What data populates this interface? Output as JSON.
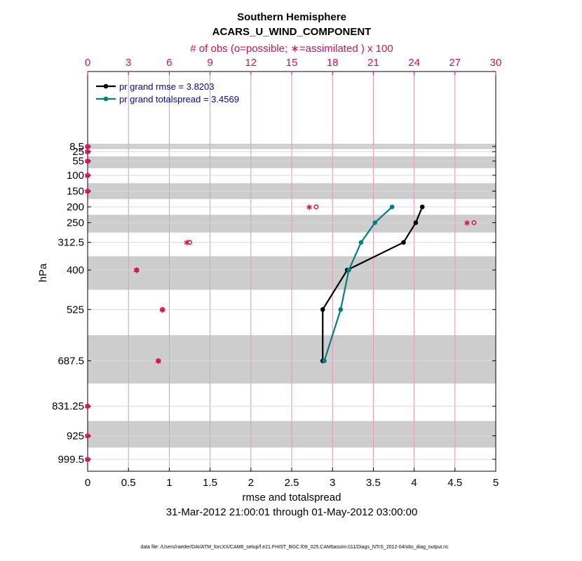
{
  "chart_data": {
    "type": "line",
    "title": "Southern Hemisphere",
    "subtitle": "ACARS_U_WIND_COMPONENT",
    "top_axis_label": "# of obs (o=possible; ∗=assimilated ) x 100",
    "xlabel": "rmse and totalspread",
    "ylabel": "hPa",
    "date_range": "31-Mar-2012 21:00:01 through 01-May-2012 03:00:00",
    "footnote": "data file: /Users/raeder/DAI/ATM_forcXX/CAM6_setup/f.e21.FHIST_BGC.f09_025.CAM6assim.011/Diags_NTrS_2012-04/obs_diag_output.nc",
    "xlim": [
      0,
      5
    ],
    "x_ticks": [
      "0",
      "0.5",
      "1",
      "1.5",
      "2",
      "2.5",
      "3",
      "3.5",
      "4",
      "4.5",
      "5"
    ],
    "top_xlim": [
      0,
      30
    ],
    "top_ticks": [
      "0",
      "3",
      "6",
      "9",
      "12",
      "15",
      "18",
      "21",
      "24",
      "27",
      "30"
    ],
    "y_levels": [
      8.5,
      25,
      55,
      100,
      150,
      200,
      250,
      312.5,
      400,
      525,
      687.5,
      831.25,
      925,
      999.5
    ],
    "y_tick_labels": [
      "8.5",
      "25",
      "55",
      "100",
      "150",
      "200",
      "250",
      "312.5",
      "400",
      "525",
      "687.5",
      "831.25",
      "925",
      "999.5"
    ],
    "legend_position": "top-left",
    "grid": true,
    "series": [
      {
        "name": "pr grand rmse = 3.8203",
        "color": "#000000",
        "levels": [
          200,
          250,
          312.5,
          400,
          525,
          687.5
        ],
        "values": [
          4.1,
          4.02,
          3.87,
          3.18,
          2.88,
          2.88
        ]
      },
      {
        "name": "pr grand totalspread = 3.4569",
        "color": "#007f7f",
        "levels": [
          200,
          250,
          312.5,
          400,
          525,
          687.5
        ],
        "values": [
          3.73,
          3.52,
          3.35,
          3.2,
          3.1,
          2.9
        ]
      }
    ],
    "obs_counts": {
      "color": "#d6104f",
      "levels": [
        8.5,
        25,
        55,
        100,
        150,
        200,
        250,
        312.5,
        400,
        525,
        687.5,
        831.25,
        925,
        999.5
      ],
      "possible": [
        0,
        0,
        0,
        0,
        0,
        16.8,
        28.4,
        7.5,
        3.6,
        5.5,
        5.2,
        0,
        0,
        0
      ],
      "assimilated": [
        0,
        0,
        0,
        0,
        0,
        16.3,
        27.9,
        7.3,
        3.6,
        5.5,
        5.2,
        0,
        0,
        0
      ]
    }
  }
}
